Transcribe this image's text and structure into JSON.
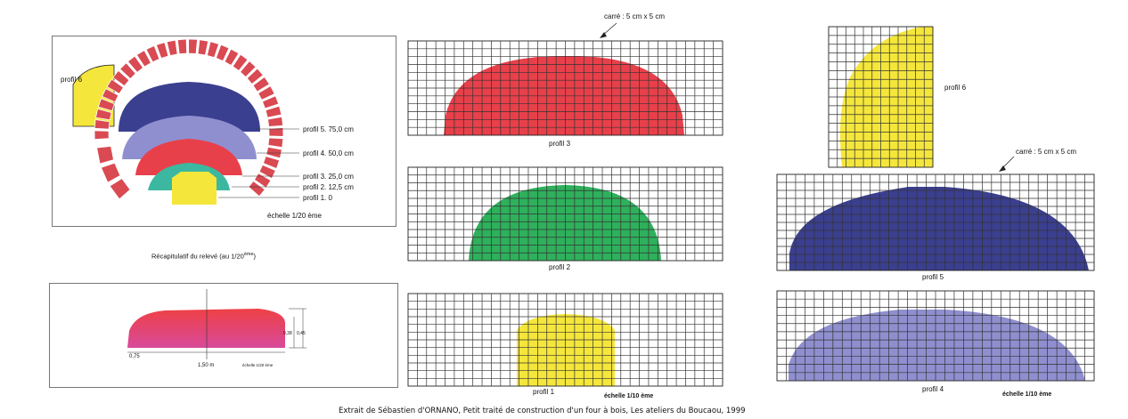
{
  "summary_panel": {
    "labels": {
      "profil6": "profil 6",
      "profil5": "profil 5.  75,0 cm",
      "profil4": "profil 4.  50,0 cm",
      "profil3": "profil 3.  25,0 cm",
      "profil2": "profil 2.  12,5 cm",
      "profil1": "profil 1.   0",
      "scale": "échelle 1/20 ème"
    },
    "caption_main": "Récapitulatif du relevé (au 1/20",
    "caption_sup": "ème",
    "caption_end": ")"
  },
  "section_panel": {
    "dim_width": "0,75",
    "dim_total": "1,50 m",
    "dim_scale": "échelle 1/20 ème",
    "dim_h1": "0,38",
    "dim_h2": "0,45"
  },
  "grids": {
    "profil3": "profil 3",
    "profil2": "profil 2",
    "profil1": "profil 1",
    "profil6": "profil 6",
    "profil5": "profil 5",
    "profil4": "profil 4",
    "square_note_1": "carré : 5 cm x 5 cm",
    "square_note_2": "carré : 5 cm x 5 cm",
    "scale_mid": "échelle 1/10 ème",
    "scale_right": "échelle 1/10 ème"
  },
  "footer": {
    "credit": "Extrait de Sébastien d'ORNANO, Petit traité de construction d'un four à bois, Les ateliers du Boucaou, 1999"
  },
  "colors": {
    "red": "#e8404a",
    "green": "#2fb05c",
    "yellow": "#f5e63c",
    "navy": "#3b3f8f",
    "lavender": "#8f8fd0",
    "brick": "#d94a52",
    "teal": "#3cb8a0"
  }
}
